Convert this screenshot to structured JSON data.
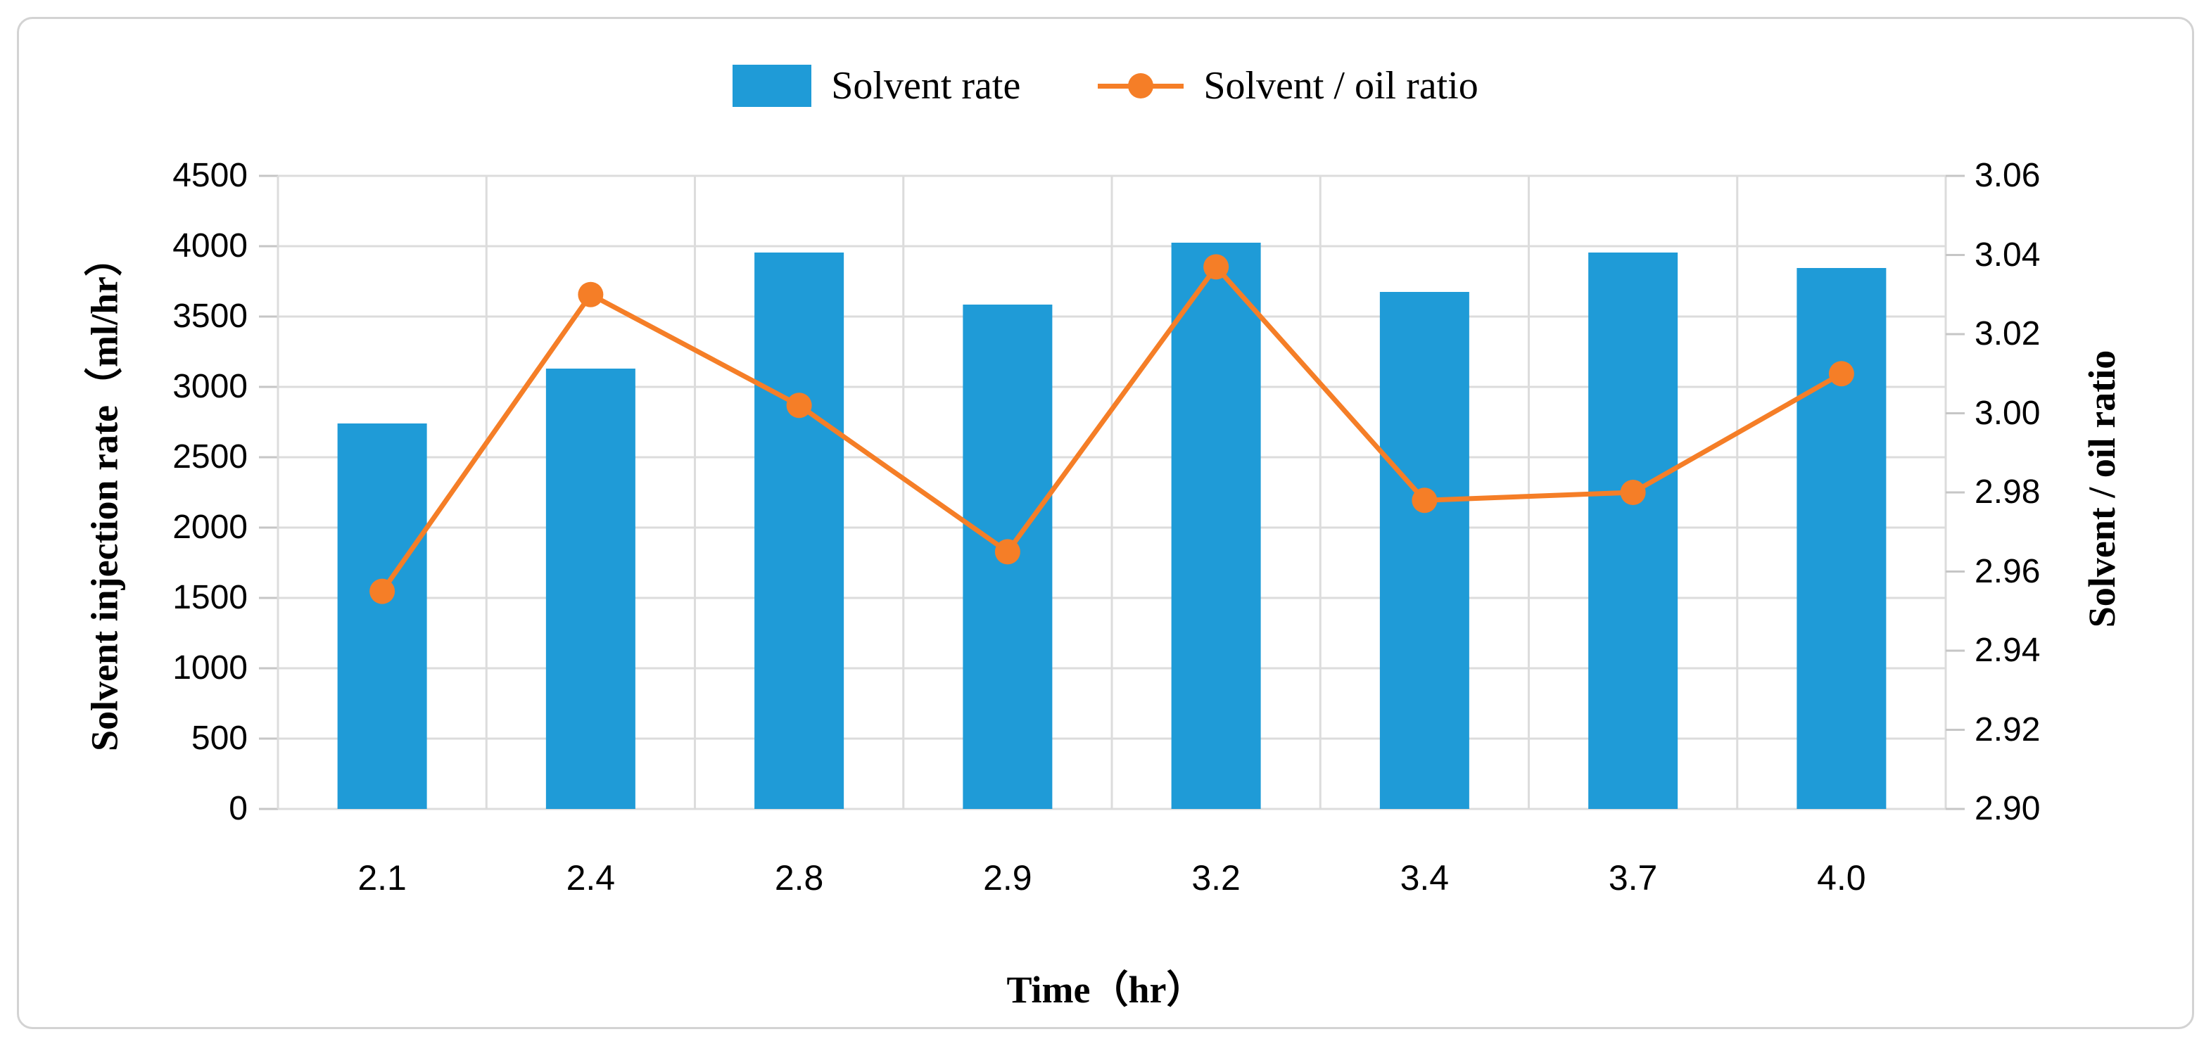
{
  "figure": {
    "background": "#ffffff",
    "frame_border_color": "#d3d3d3"
  },
  "colors": {
    "bar": "#1f9bd7",
    "line": "#f57e27",
    "gridline": "#dcdcdc",
    "tick_stub": "#c6c6c6",
    "text": "#000000"
  },
  "legend": {
    "items": [
      {
        "label": "Solvent rate",
        "type": "bar-swatch",
        "color": "#1f9bd7"
      },
      {
        "label": "Solvent / oil ratio",
        "type": "line-marker",
        "color": "#f57e27"
      }
    ]
  },
  "axes": {
    "left": {
      "title": "Solvent injection rate（ml/hr）",
      "ticks": [
        "0",
        "500",
        "1000",
        "1500",
        "2000",
        "2500",
        "3000",
        "3500",
        "4000",
        "4500"
      ]
    },
    "right": {
      "title": "Solvent / oil ratio",
      "ticks": [
        "2.90",
        "2.92",
        "2.94",
        "2.96",
        "2.98",
        "3.00",
        "3.02",
        "3.04",
        "3.06"
      ]
    },
    "x": {
      "title": "Time（hr）"
    }
  },
  "chart_data": {
    "type": "bar",
    "subtype": "bar+line-dual-axis",
    "title": "",
    "xlabel": "Time（hr）",
    "ylabel_left": "Solvent injection rate（ml/hr）",
    "ylabel_right": "Solvent / oil ratio",
    "categories": [
      "2.1",
      "2.4",
      "2.8",
      "2.9",
      "3.2",
      "3.4",
      "3.7",
      "4.0"
    ],
    "series": [
      {
        "name": "Solvent rate",
        "type": "bar",
        "axis": "left",
        "color": "#1f9bd7",
        "values": [
          2740,
          3130,
          3955,
          3585,
          4025,
          3675,
          3955,
          3845
        ]
      },
      {
        "name": "Solvent / oil ratio",
        "type": "line",
        "axis": "right",
        "color": "#f57e27",
        "values": [
          2.955,
          3.03,
          3.002,
          2.965,
          3.037,
          2.978,
          2.98,
          3.01
        ]
      }
    ],
    "ylim_left": [
      0,
      4500
    ],
    "ytick_step_left": 500,
    "ylim_right": [
      2.9,
      3.06
    ],
    "ytick_step_right": 0.02,
    "grid": true,
    "legend_position": "top-center"
  }
}
